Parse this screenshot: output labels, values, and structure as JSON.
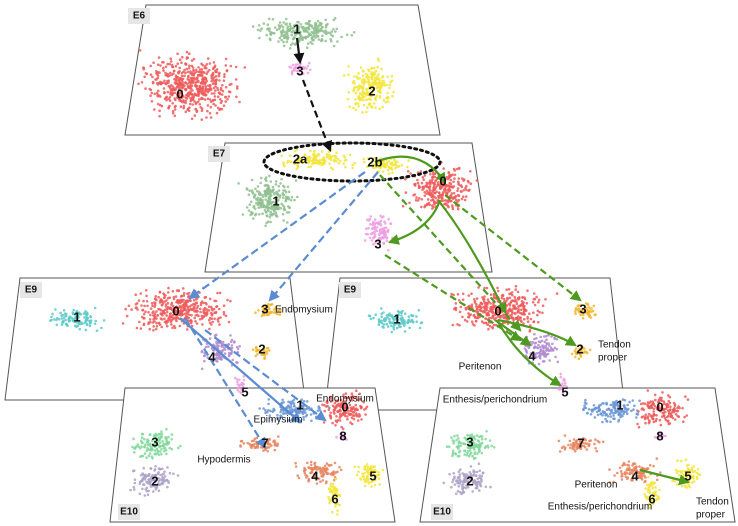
{
  "panels": [
    {
      "label": "E6",
      "clusters": [
        "0",
        "1",
        "2",
        "3"
      ],
      "annotations": []
    },
    {
      "label": "E7",
      "clusters": [
        "2a",
        "2b",
        "1",
        "0",
        "3"
      ],
      "annotations": []
    },
    {
      "label": "E9",
      "clusters": [
        "1",
        "0",
        "3",
        "2",
        "4",
        "5"
      ],
      "annotations": [
        "Endomysium"
      ]
    },
    {
      "label": "E9",
      "clusters": [
        "1",
        "0",
        "3",
        "2",
        "4",
        "5"
      ],
      "annotations": [
        "Tendon",
        "proper",
        "Peritenon",
        "Enthesis/perichondrium"
      ]
    },
    {
      "label": "E10",
      "clusters": [
        "3",
        "2",
        "1",
        "0",
        "8",
        "7",
        "4",
        "5",
        "6"
      ],
      "annotations": [
        "Endomysium",
        "Epimysium",
        "Hypodermis"
      ]
    },
    {
      "label": "E10",
      "clusters": [
        "3",
        "2",
        "1",
        "0",
        "8",
        "7",
        "4",
        "5",
        "6"
      ],
      "annotations": [
        "Peritenon",
        "Enthesis/perichondrium",
        "Tendon",
        "proper"
      ]
    }
  ]
}
